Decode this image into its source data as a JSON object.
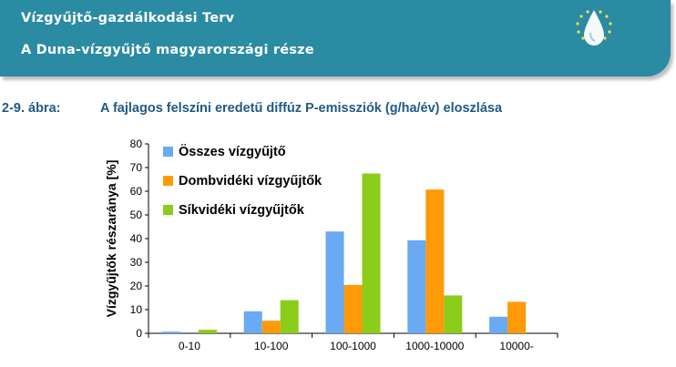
{
  "header": {
    "line1": "Vízgyűjtő-gazdálkodási Terv",
    "line2": "A Duna-vízgyűjtő magyarországi része",
    "logo_icon": "water-drop-stars-icon"
  },
  "figure": {
    "number": "2-9. ábra:",
    "caption": "A fajlagos felszíni eredetű diffúz P-emissziók (g/ha/év) eloszlása"
  },
  "chart_data": {
    "type": "bar",
    "categories": [
      "0-10",
      "10-100",
      "100-1000",
      "1000-10000",
      "10000-"
    ],
    "series": [
      {
        "name": "Összes vízgyűjtő",
        "color": "#6aa9f4",
        "values": [
          0.7,
          9.3,
          43,
          39.3,
          7
        ]
      },
      {
        "name": "Dombvidéki vízgyűjtők",
        "color": "#ff9a08",
        "values": [
          0,
          5.3,
          20.4,
          60.7,
          13.3
        ]
      },
      {
        "name": "Síkvidéki vízgyűjtők",
        "color": "#8ccc1a",
        "values": [
          1.5,
          14,
          67.5,
          16,
          0
        ]
      }
    ],
    "ylabel": "Vízgyűjtők részaránya [%]",
    "xlabel": "",
    "title": "",
    "ylim": [
      0,
      80
    ],
    "yticks": [
      0,
      10,
      20,
      30,
      40,
      50,
      60,
      70,
      80
    ],
    "grid": false,
    "legend": "top-left"
  }
}
